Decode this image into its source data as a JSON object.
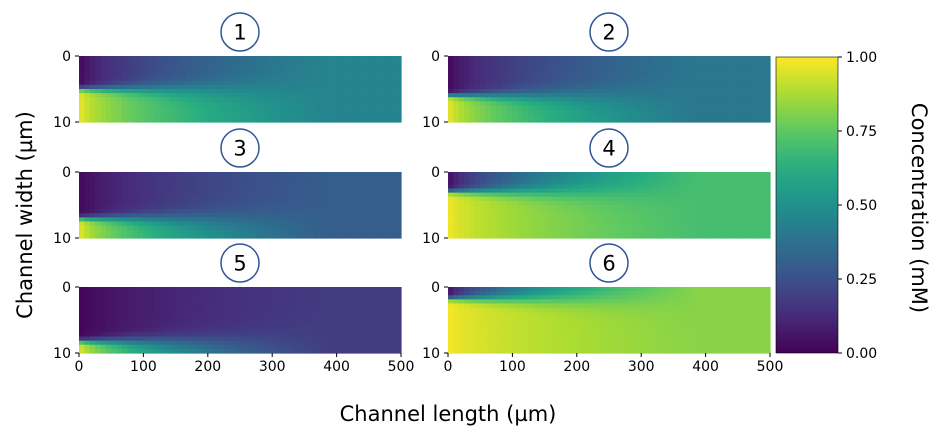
{
  "chart_data": {
    "type": "heatmap",
    "xlabel": "Channel length (µm)",
    "ylabel": "Channel width (µm)",
    "x_ticks": [
      "0",
      "100",
      "200",
      "300",
      "400",
      "500"
    ],
    "y_ticks": [
      "0",
      "10"
    ],
    "xlim": [
      0,
      500
    ],
    "ylim": [
      0,
      10
    ],
    "colorbar": {
      "label": "Concentration (mM)",
      "ticks": [
        "0.00",
        "0.25",
        "0.50",
        "0.75",
        "1.00"
      ],
      "range": [
        0,
        1
      ],
      "colormap": "viridis"
    },
    "panels": [
      {
        "label": "1",
        "final_concentration": 0.45,
        "inlet_fraction": 0.5
      },
      {
        "label": "2",
        "final_concentration": 0.4,
        "inlet_fraction": 0.4
      },
      {
        "label": "3",
        "final_concentration": 0.3,
        "inlet_fraction": 0.3
      },
      {
        "label": "4",
        "final_concentration": 0.7,
        "inlet_fraction": 0.7
      },
      {
        "label": "5",
        "final_concentration": 0.18,
        "inlet_fraction": 0.18
      },
      {
        "label": "6",
        "final_concentration": 0.82,
        "inlet_fraction": 0.82
      }
    ]
  }
}
